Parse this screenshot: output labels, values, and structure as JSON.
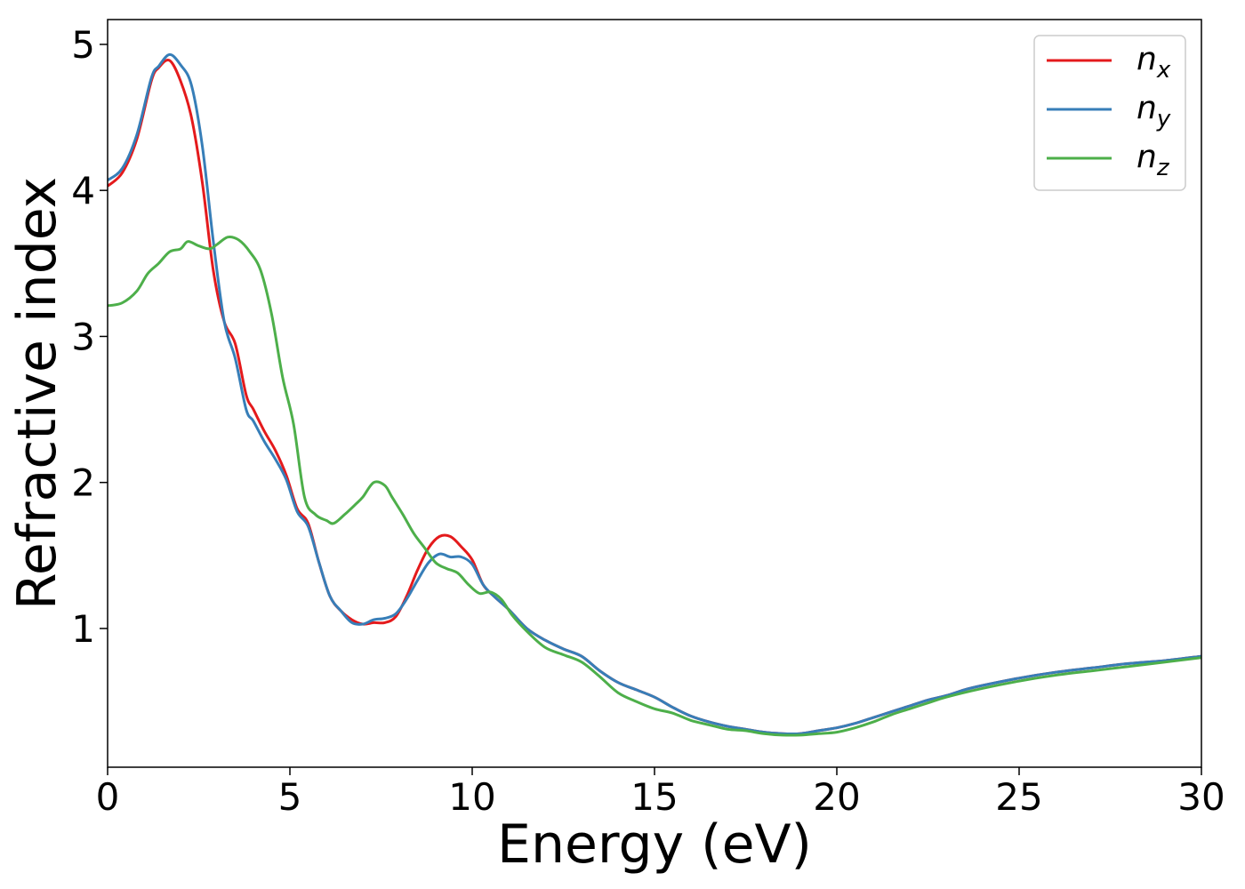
{
  "chart_data": {
    "type": "line",
    "xlabel": "Energy (eV)",
    "ylabel": "Refractive index",
    "xlim": [
      0,
      30
    ],
    "ylim": [
      0.05,
      5.17
    ],
    "xticks": [
      0,
      5,
      10,
      15,
      20,
      25,
      30
    ],
    "yticks": [
      1,
      2,
      3,
      4,
      5
    ],
    "grid": false,
    "legend_position": "top-right",
    "series": [
      {
        "name": "n_x",
        "label_base": "n",
        "label_sub": "x",
        "color": "#e41a1c",
        "x": [
          0,
          0.4,
          0.8,
          1.2,
          1.4,
          1.7,
          2.0,
          2.3,
          2.6,
          2.9,
          3.2,
          3.5,
          3.8,
          4.0,
          4.3,
          4.6,
          4.9,
          5.2,
          5.5,
          5.8,
          6.1,
          6.4,
          6.7,
          7.0,
          7.3,
          7.6,
          7.9,
          8.2,
          8.5,
          8.8,
          9.1,
          9.4,
          9.7,
          10.0,
          10.3,
          10.6,
          11.0,
          11.5,
          12.0,
          12.5,
          13.0,
          13.5,
          14.0,
          14.5,
          15.0,
          15.5,
          16.0,
          16.5,
          17.0,
          17.5,
          18.0,
          18.5,
          19.0,
          19.5,
          20.0,
          20.5,
          21.0,
          21.5,
          22.0,
          22.5,
          23.0,
          23.5,
          24.0,
          25.0,
          26.0,
          27.0,
          28.0,
          29.0,
          30.0
        ],
        "y": [
          4.03,
          4.12,
          4.35,
          4.75,
          4.84,
          4.89,
          4.75,
          4.5,
          4.05,
          3.45,
          3.1,
          2.95,
          2.6,
          2.5,
          2.35,
          2.22,
          2.05,
          1.82,
          1.72,
          1.45,
          1.22,
          1.12,
          1.06,
          1.03,
          1.04,
          1.04,
          1.08,
          1.22,
          1.4,
          1.55,
          1.63,
          1.63,
          1.56,
          1.47,
          1.3,
          1.22,
          1.13,
          1.0,
          0.92,
          0.86,
          0.81,
          0.71,
          0.63,
          0.58,
          0.53,
          0.46,
          0.4,
          0.36,
          0.33,
          0.31,
          0.29,
          0.28,
          0.28,
          0.3,
          0.32,
          0.35,
          0.39,
          0.43,
          0.47,
          0.51,
          0.54,
          0.58,
          0.61,
          0.66,
          0.7,
          0.73,
          0.76,
          0.78,
          0.81
        ]
      },
      {
        "name": "n_y",
        "label_base": "n",
        "label_sub": "y",
        "color": "#377eb8",
        "x": [
          0,
          0.4,
          0.8,
          1.2,
          1.4,
          1.7,
          2.0,
          2.3,
          2.6,
          2.9,
          3.2,
          3.5,
          3.8,
          4.0,
          4.3,
          4.6,
          4.9,
          5.2,
          5.5,
          5.8,
          6.1,
          6.4,
          6.7,
          7.0,
          7.3,
          7.6,
          7.9,
          8.2,
          8.5,
          8.8,
          9.1,
          9.4,
          9.7,
          10.0,
          10.3,
          10.6,
          11.0,
          11.5,
          12.0,
          12.5,
          13.0,
          13.5,
          14.0,
          14.5,
          15.0,
          15.5,
          16.0,
          16.5,
          17.0,
          17.5,
          18.0,
          18.5,
          19.0,
          19.5,
          20.0,
          20.5,
          21.0,
          21.5,
          22.0,
          22.5,
          23.0,
          23.5,
          24.0,
          25.0,
          26.0,
          27.0,
          28.0,
          29.0,
          30.0
        ],
        "y": [
          4.07,
          4.15,
          4.38,
          4.77,
          4.85,
          4.93,
          4.86,
          4.72,
          4.3,
          3.65,
          3.1,
          2.85,
          2.5,
          2.42,
          2.28,
          2.16,
          2.02,
          1.8,
          1.7,
          1.45,
          1.22,
          1.12,
          1.04,
          1.03,
          1.06,
          1.07,
          1.1,
          1.2,
          1.33,
          1.45,
          1.51,
          1.49,
          1.49,
          1.44,
          1.3,
          1.22,
          1.13,
          1.0,
          0.92,
          0.86,
          0.81,
          0.71,
          0.63,
          0.58,
          0.53,
          0.46,
          0.4,
          0.36,
          0.33,
          0.31,
          0.29,
          0.28,
          0.28,
          0.3,
          0.32,
          0.35,
          0.39,
          0.43,
          0.47,
          0.51,
          0.54,
          0.58,
          0.61,
          0.66,
          0.7,
          0.73,
          0.76,
          0.78,
          0.81
        ]
      },
      {
        "name": "n_z",
        "label_base": "n",
        "label_sub": "z",
        "color": "#4daf4a",
        "x": [
          0,
          0.4,
          0.8,
          1.1,
          1.4,
          1.7,
          2.0,
          2.2,
          2.5,
          2.8,
          3.0,
          3.3,
          3.6,
          3.9,
          4.2,
          4.5,
          4.8,
          5.1,
          5.4,
          5.7,
          6.0,
          6.2,
          6.5,
          6.8,
          7.0,
          7.3,
          7.6,
          7.8,
          8.1,
          8.4,
          8.7,
          9.0,
          9.3,
          9.6,
          9.9,
          10.2,
          10.5,
          10.8,
          11.1,
          11.5,
          12.0,
          12.5,
          13.0,
          13.5,
          14.0,
          14.5,
          15.0,
          15.5,
          16.0,
          16.5,
          17.0,
          17.5,
          18.0,
          18.5,
          19.0,
          19.5,
          20.0,
          20.5,
          21.0,
          21.5,
          22.0,
          22.5,
          23.0,
          24.0,
          25.0,
          26.0,
          27.0,
          28.0,
          29.0,
          30.0
        ],
        "y": [
          3.21,
          3.23,
          3.31,
          3.43,
          3.5,
          3.58,
          3.6,
          3.65,
          3.62,
          3.6,
          3.63,
          3.68,
          3.66,
          3.58,
          3.45,
          3.15,
          2.72,
          2.4,
          1.9,
          1.78,
          1.74,
          1.72,
          1.78,
          1.85,
          1.9,
          2.0,
          1.98,
          1.9,
          1.78,
          1.65,
          1.55,
          1.45,
          1.41,
          1.38,
          1.3,
          1.24,
          1.25,
          1.2,
          1.09,
          0.98,
          0.87,
          0.82,
          0.77,
          0.67,
          0.56,
          0.5,
          0.45,
          0.42,
          0.37,
          0.34,
          0.31,
          0.3,
          0.28,
          0.27,
          0.27,
          0.28,
          0.29,
          0.32,
          0.36,
          0.41,
          0.45,
          0.49,
          0.53,
          0.59,
          0.64,
          0.68,
          0.71,
          0.74,
          0.77,
          0.8
        ]
      }
    ]
  }
}
